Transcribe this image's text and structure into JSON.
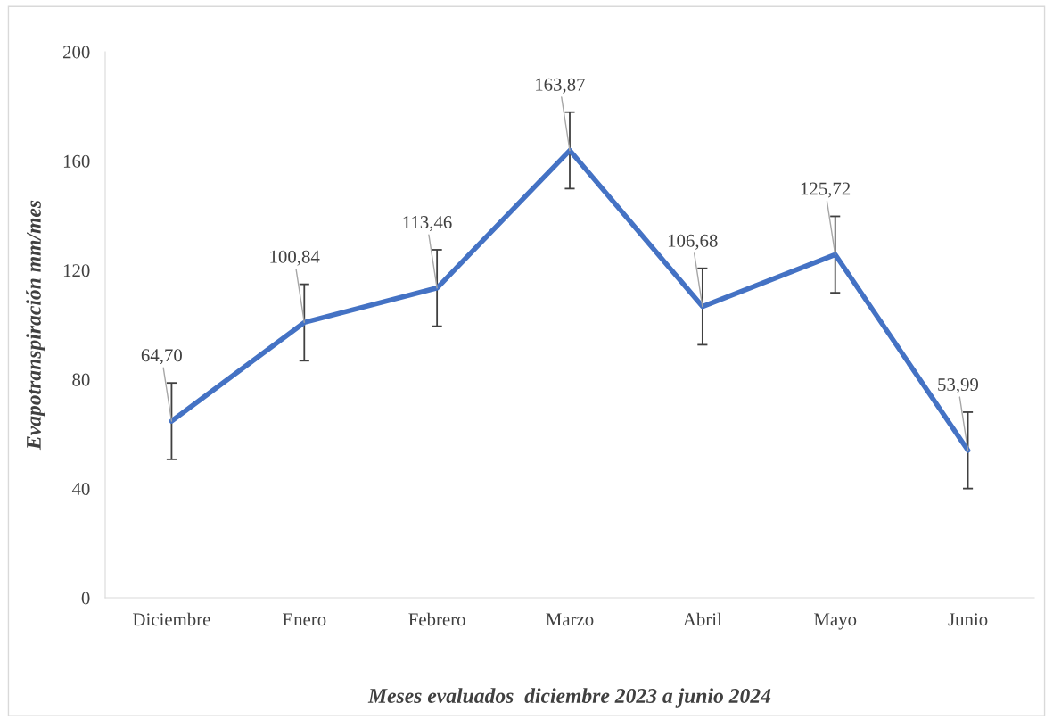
{
  "chart_data": {
    "type": "line",
    "xlabel": "Meses evaluados  diciembre 2023 a junio 2024",
    "ylabel": "Evapotranspiración mm/mes",
    "categories": [
      "Diciembre",
      "Enero",
      "Febrero",
      "Marzo",
      "Abril",
      "Mayo",
      "Junio"
    ],
    "series": [
      {
        "color": "#4472c4",
        "values": [
          64.7,
          100.84,
          113.46,
          163.87,
          106.68,
          125.72,
          53.99
        ],
        "errors": [
          14,
          14,
          14,
          14,
          14,
          14,
          14
        ],
        "value_labels": [
          "64,70",
          "100,84",
          "113,46",
          "163,87",
          "106,68",
          "125,72",
          "53,99"
        ]
      }
    ],
    "ylim": [
      0,
      200
    ],
    "yticks": [
      0,
      40,
      80,
      120,
      160,
      200
    ],
    "grid": false,
    "legend": false,
    "marker": "none",
    "line_style": "solid"
  }
}
